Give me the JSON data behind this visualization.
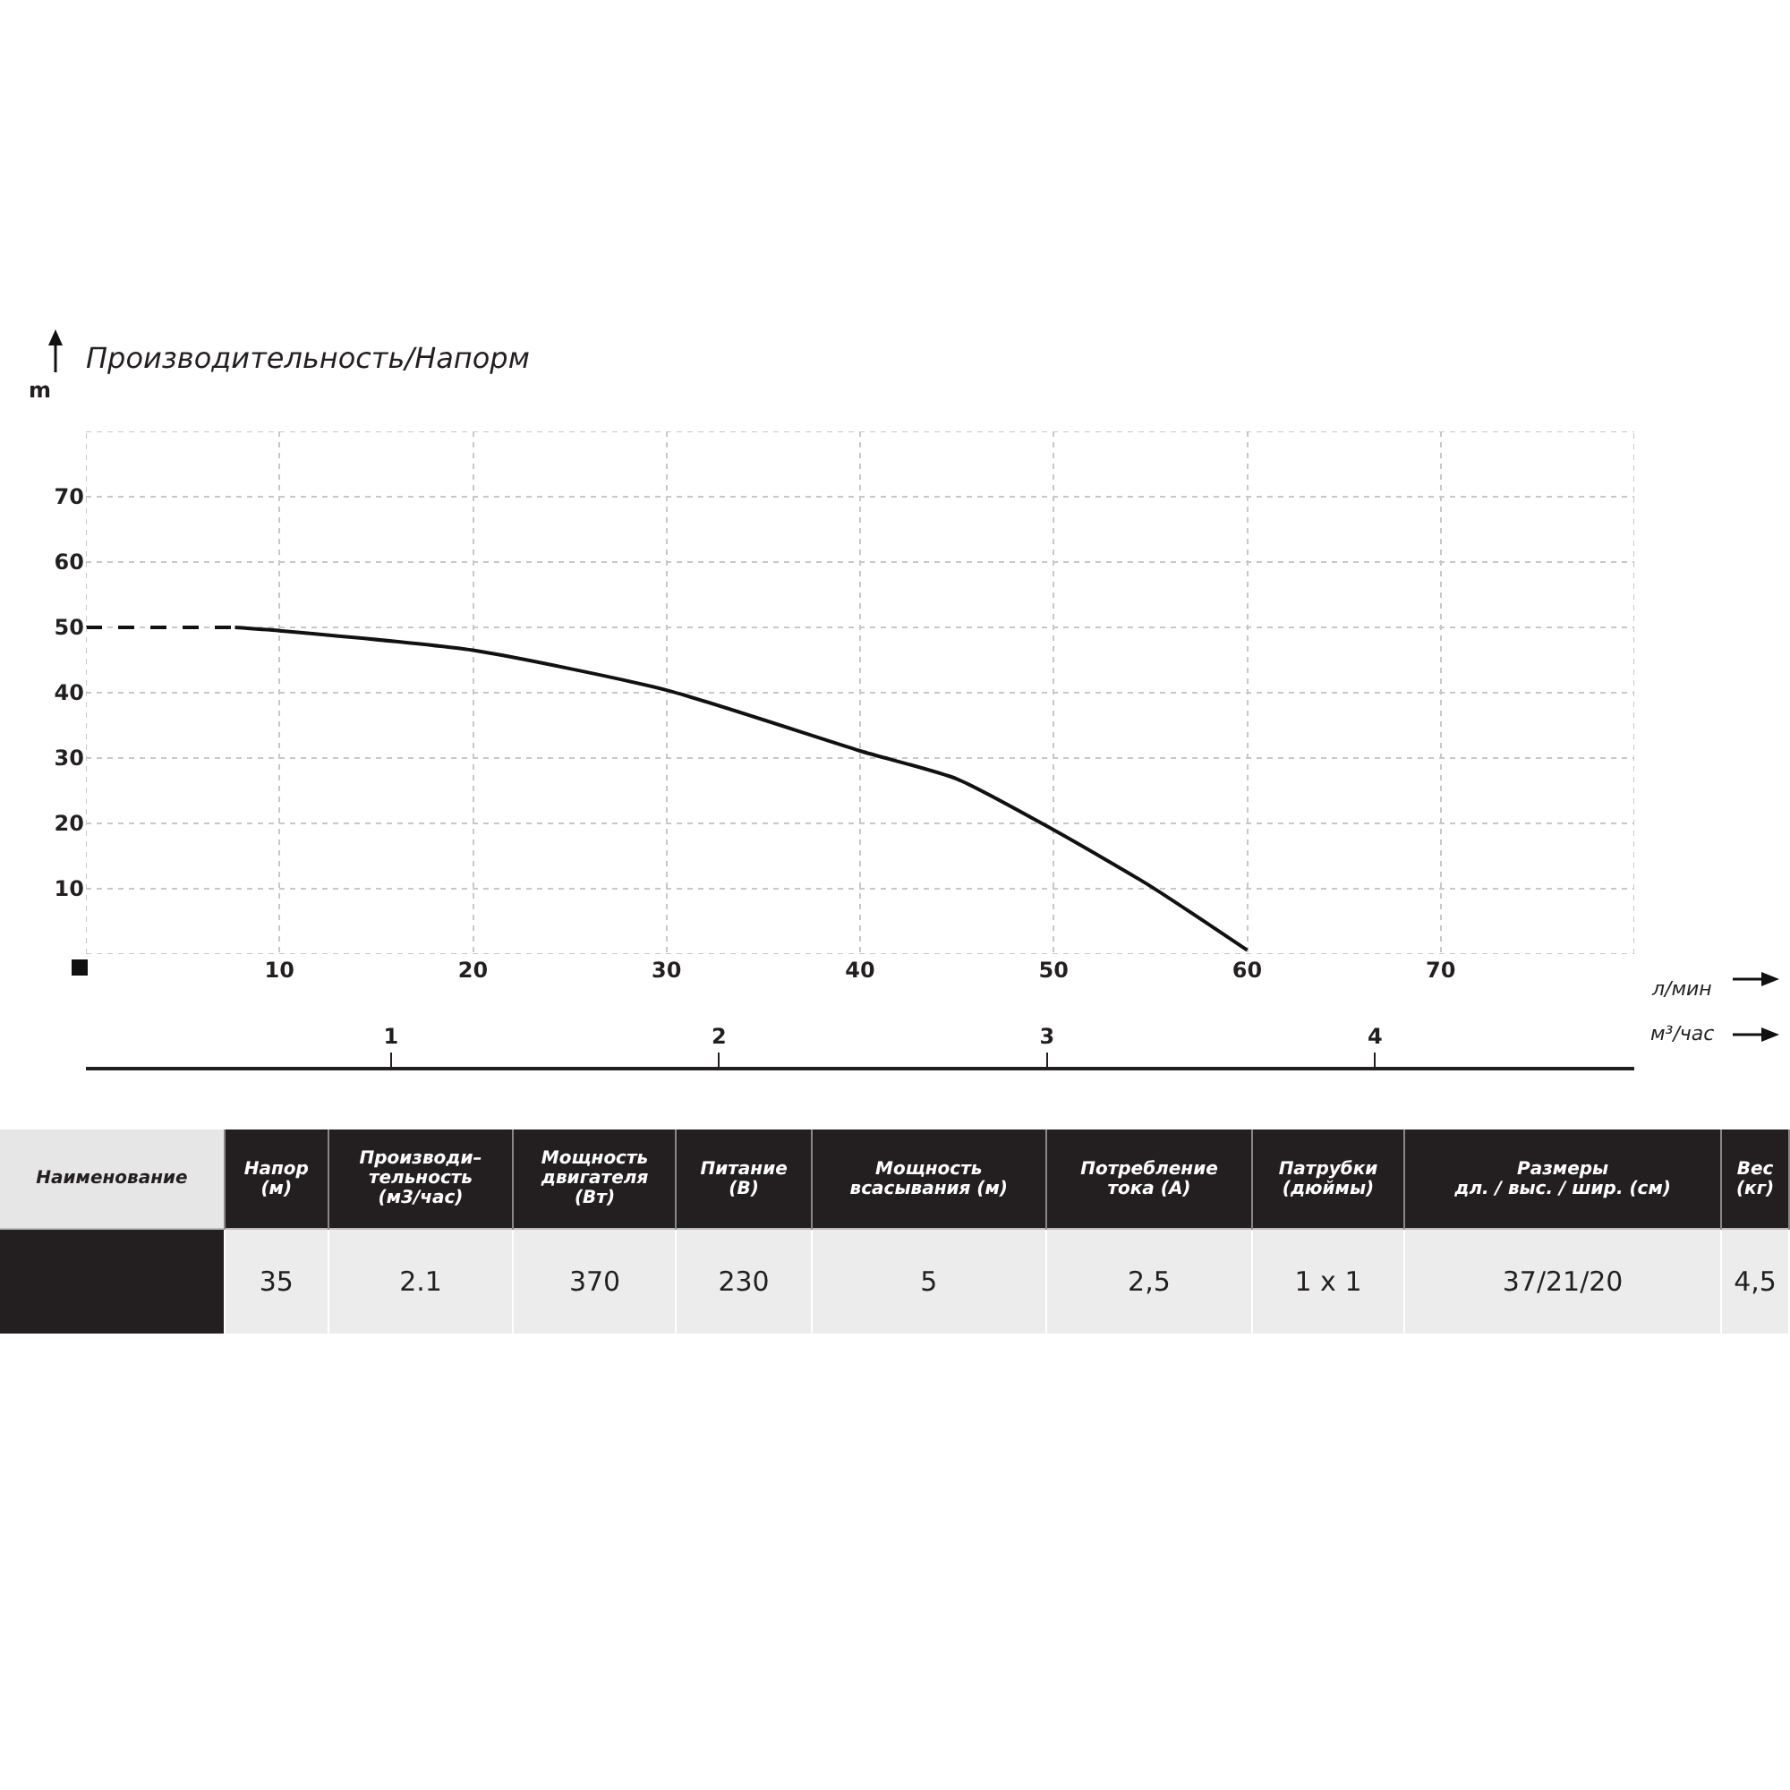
{
  "chart_data": [
    {
      "type": "line",
      "title": "Производительность/Напорм",
      "ylabel": "m",
      "xlabel": "л/мин",
      "x2label": "м³/час",
      "series": [
        {
          "color": "#111111",
          "line_style": "dashed",
          "x": [
            0,
            7.7
          ],
          "values": [
            50,
            50
          ]
        },
        {
          "color": "#111111",
          "line_style": "solid",
          "x": [
            7.7,
            10,
            20,
            30,
            40,
            45,
            50,
            55,
            60
          ],
          "values": [
            50,
            49.5,
            46.5,
            40.4,
            31.1,
            26.8,
            19,
            10.4,
            0.6
          ]
        }
      ],
      "xlim": [
        0,
        80
      ],
      "xticks": [
        {
          "value": 0,
          "label": null
        },
        10,
        20,
        30,
        40,
        50,
        60,
        70,
        {
          "value": 80,
          "label": null
        }
      ],
      "ylim": [
        0,
        80
      ],
      "yticks": [
        {
          "value": 0,
          "label": null
        },
        10,
        20,
        30,
        40,
        50,
        60,
        70,
        {
          "value": 80,
          "label": null
        }
      ],
      "x2lim": [
        0.07,
        4.79
      ],
      "x2ticks": [
        1,
        2,
        3,
        4
      ],
      "grid": true,
      "marker": "none"
    },
    {
      "type": "other",
      "categories": [
        "Наименование",
        "Напор\n(м)",
        "Производи–\nтельность\n(м3/час)",
        "Мощность\nдвигателя\n(Вт)",
        "Питание\n(В)",
        "Мощность\nвсасывания (м)",
        "Потребление\nтока (А)",
        "Патрубки\n(дюймы)",
        "Размеры\nдл. / выс. / шир. (см)",
        "Вес\n(кг)"
      ],
      "y_categories": [
        null
      ],
      "cells": [
        [
          null,
          "35",
          "2.1",
          "370",
          "230",
          "5",
          "2,5",
          "1 x 1",
          "37/21/20",
          "4,5"
        ]
      ]
    }
  ]
}
